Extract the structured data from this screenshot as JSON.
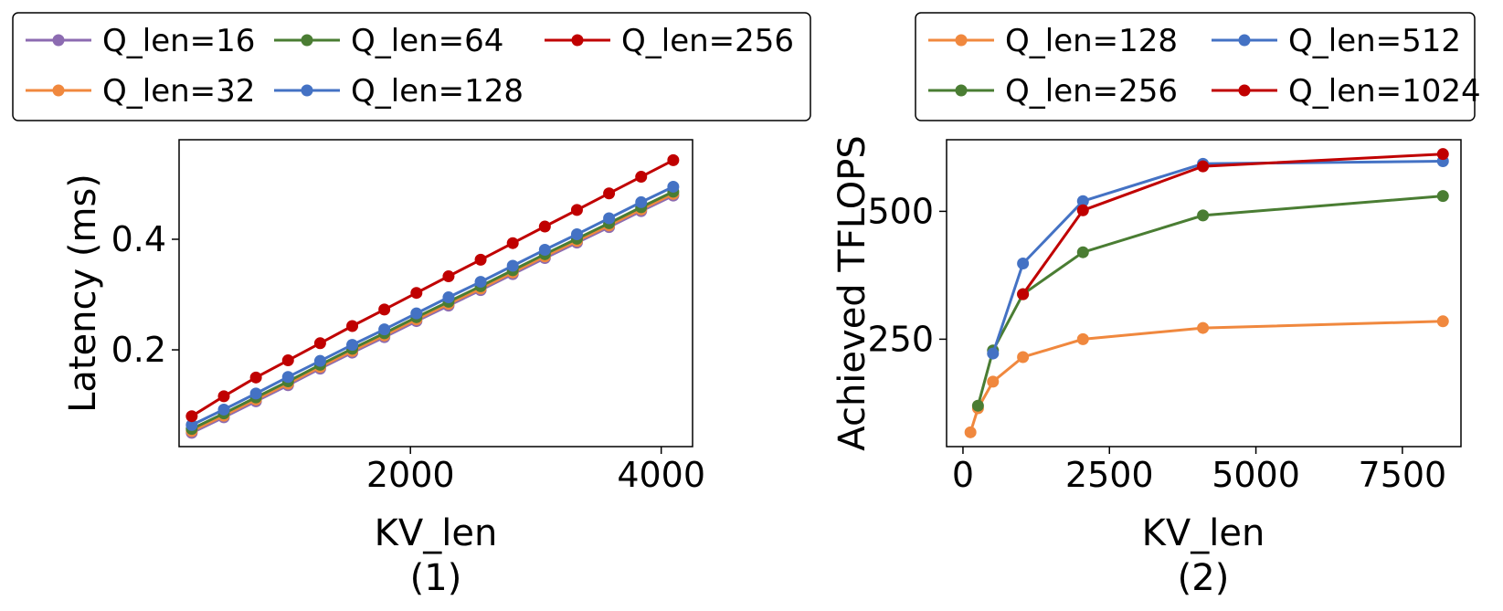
{
  "colors": {
    "purple": "#8c6bb1",
    "orange": "#f0883e",
    "green": "#4a7d33",
    "blue": "#4472c4",
    "red": "#c00000"
  },
  "chart_data": [
    {
      "type": "line",
      "caption": "(1)",
      "xlabel": "KV_len",
      "ylabel": "Latency (ms)",
      "xlim": [
        155,
        4250
      ],
      "ylim": [
        0.025,
        0.58
      ],
      "xticks": [
        2000,
        4000
      ],
      "xtick_labels": [
        "2000",
        "4000"
      ],
      "yticks": [
        0.2,
        0.4
      ],
      "ytick_labels": [
        "0.2",
        "0.4"
      ],
      "legend": {
        "position": "top",
        "columns": 3
      },
      "x": [
        256,
        512,
        768,
        1024,
        1280,
        1536,
        1792,
        2048,
        2304,
        2560,
        2816,
        3072,
        3328,
        3584,
        3840,
        4096
      ],
      "series": [
        {
          "name": "Q_len=16",
          "color": "purple",
          "values": [
            0.05,
            0.078,
            0.107,
            0.136,
            0.166,
            0.195,
            0.223,
            0.252,
            0.28,
            0.308,
            0.337,
            0.366,
            0.394,
            0.422,
            0.451,
            0.479
          ]
        },
        {
          "name": "Q_len=32",
          "color": "orange",
          "values": [
            0.053,
            0.081,
            0.11,
            0.139,
            0.169,
            0.198,
            0.226,
            0.255,
            0.283,
            0.311,
            0.34,
            0.369,
            0.397,
            0.425,
            0.454,
            0.482
          ]
        },
        {
          "name": "Q_len=64",
          "color": "green",
          "values": [
            0.057,
            0.085,
            0.114,
            0.143,
            0.173,
            0.202,
            0.23,
            0.259,
            0.287,
            0.315,
            0.344,
            0.373,
            0.401,
            0.429,
            0.458,
            0.486
          ]
        },
        {
          "name": "Q_len=128",
          "color": "blue",
          "values": [
            0.064,
            0.092,
            0.121,
            0.151,
            0.18,
            0.209,
            0.237,
            0.266,
            0.295,
            0.323,
            0.352,
            0.381,
            0.409,
            0.438,
            0.467,
            0.495
          ]
        },
        {
          "name": "Q_len=256",
          "color": "red",
          "values": [
            0.08,
            0.116,
            0.15,
            0.181,
            0.212,
            0.243,
            0.273,
            0.303,
            0.333,
            0.363,
            0.393,
            0.423,
            0.453,
            0.483,
            0.513,
            0.543
          ]
        }
      ]
    },
    {
      "type": "line",
      "caption": "(2)",
      "xlabel": "KV_len",
      "ylabel": "Achieved TFLOPS",
      "xlim": [
        -280,
        8500
      ],
      "ylim": [
        40,
        640
      ],
      "xticks": [
        0,
        2500,
        5000,
        7500
      ],
      "xtick_labels": [
        "0",
        "2500",
        "5000",
        "7500"
      ],
      "yticks": [
        250,
        500
      ],
      "ytick_labels": [
        "250",
        "500"
      ],
      "legend": {
        "position": "top",
        "columns": 2
      },
      "series": [
        {
          "name": "Q_len=128",
          "color": "orange",
          "x": [
            128,
            256,
            512,
            1024,
            2048,
            4096,
            8192
          ],
          "values": [
            68,
            115,
            167,
            215,
            250,
            272,
            285
          ]
        },
        {
          "name": "Q_len=256",
          "color": "green",
          "x": [
            256,
            512,
            1024,
            2048,
            4096,
            8192
          ],
          "values": [
            120,
            228,
            338,
            420,
            492,
            530
          ]
        },
        {
          "name": "Q_len=512",
          "color": "blue",
          "x": [
            512,
            1024,
            2048,
            4096,
            8192
          ],
          "values": [
            222,
            398,
            520,
            593,
            598
          ]
        },
        {
          "name": "Q_len=1024",
          "color": "red",
          "x": [
            1024,
            2048,
            4096,
            8192
          ],
          "values": [
            338,
            502,
            588,
            612
          ]
        }
      ]
    }
  ]
}
